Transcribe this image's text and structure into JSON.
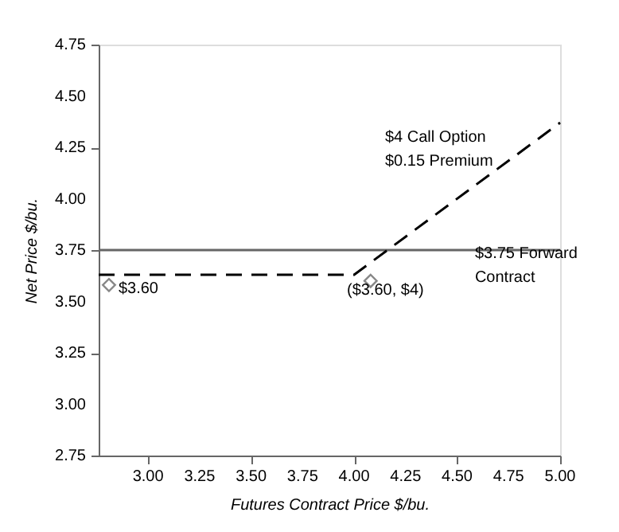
{
  "chart_data": {
    "type": "line",
    "xlabel": "Futures Contract Price $/bu.",
    "ylabel": "Net Price $/bu.",
    "xlim": [
      2.76,
      5.0
    ],
    "ylim": [
      2.75,
      4.75
    ],
    "xticks": [
      {
        "value": 3,
        "label": "3.00"
      },
      {
        "value": 3.25,
        "label": "3.25"
      },
      {
        "value": 3.5,
        "label": "3.50"
      },
      {
        "value": 3.75,
        "label": "3.75"
      },
      {
        "value": 4,
        "label": "4.00"
      },
      {
        "value": 4.25,
        "label": "4.25"
      },
      {
        "value": 4.5,
        "label": "4.50"
      },
      {
        "value": 4.75,
        "label": "4.75"
      },
      {
        "value": 5,
        "label": "5.00"
      }
    ],
    "yticks": [
      {
        "value": 2.75,
        "label": "2.75"
      },
      {
        "value": 3,
        "label": "3.00"
      },
      {
        "value": 3.25,
        "label": "3.25"
      },
      {
        "value": 3.5,
        "label": "3.50"
      },
      {
        "value": 3.75,
        "label": "3.75"
      },
      {
        "value": 4,
        "label": "4.00"
      },
      {
        "value": 4.25,
        "label": "4.25"
      },
      {
        "value": 4.5,
        "label": "4.50"
      },
      {
        "value": 4.75,
        "label": "4.75"
      }
    ],
    "grid": false,
    "series": [
      {
        "color": "#666666",
        "line_style": "solid",
        "x": [
          2.76,
          5.0
        ],
        "values": [
          3.75,
          3.75
        ]
      },
      {
        "color": "#000000",
        "line_style": "dashed",
        "x": [
          2.76,
          4.0,
          5.0
        ],
        "values": [
          3.63,
          3.63,
          4.37
        ]
      },
      {
        "type": "scatter",
        "color": "#555555",
        "marker": "diamond",
        "x": [
          2.81,
          4.08
        ],
        "values": [
          3.58,
          3.6
        ]
      }
    ],
    "annotations": [
      "$4 Call Option\n$0.15 Premium",
      {
        "text": "$3.75 Forward\nContract",
        "x": 4.54,
        "y": 3.75
      },
      {
        "text": "$3.60",
        "x": 2.81,
        "y": 3.58
      },
      "($3.60, $4)"
    ]
  }
}
